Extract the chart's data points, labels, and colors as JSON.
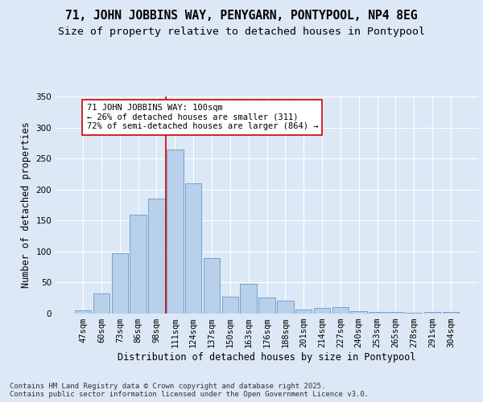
{
  "title1": "71, JOHN JOBBINS WAY, PENYGARN, PONTYPOOL, NP4 8EG",
  "title2": "Size of property relative to detached houses in Pontypool",
  "xlabel": "Distribution of detached houses by size in Pontypool",
  "ylabel": "Number of detached properties",
  "categories": [
    "47sqm",
    "60sqm",
    "73sqm",
    "86sqm",
    "98sqm",
    "111sqm",
    "124sqm",
    "137sqm",
    "150sqm",
    "163sqm",
    "176sqm",
    "188sqm",
    "201sqm",
    "214sqm",
    "227sqm",
    "240sqm",
    "253sqm",
    "265sqm",
    "278sqm",
    "291sqm",
    "304sqm"
  ],
  "values": [
    5,
    33,
    97,
    160,
    185,
    265,
    210,
    90,
    27,
    48,
    26,
    21,
    6,
    9,
    10,
    4,
    2,
    3,
    1,
    2,
    2
  ],
  "bar_color": "#b8d0ea",
  "bar_edge_color": "#6699cc",
  "vline_x": 4.5,
  "vline_color": "#cc0000",
  "annotation_text": "71 JOHN JOBBINS WAY: 100sqm\n← 26% of detached houses are smaller (311)\n72% of semi-detached houses are larger (864) →",
  "annotation_box_color": "#ffffff",
  "annotation_box_edge": "#cc0000",
  "bg_color": "#dce8f5",
  "plot_bg_color": "#dce8f5",
  "grid_color": "#ffffff",
  "ylim": [
    0,
    350
  ],
  "yticks": [
    0,
    50,
    100,
    150,
    200,
    250,
    300,
    350
  ],
  "footnote": "Contains HM Land Registry data © Crown copyright and database right 2025.\nContains public sector information licensed under the Open Government Licence v3.0.",
  "title_fontsize": 10.5,
  "subtitle_fontsize": 9.5,
  "axis_label_fontsize": 8.5,
  "tick_fontsize": 7.5,
  "footnote_fontsize": 6.5,
  "annot_fontsize": 7.5
}
